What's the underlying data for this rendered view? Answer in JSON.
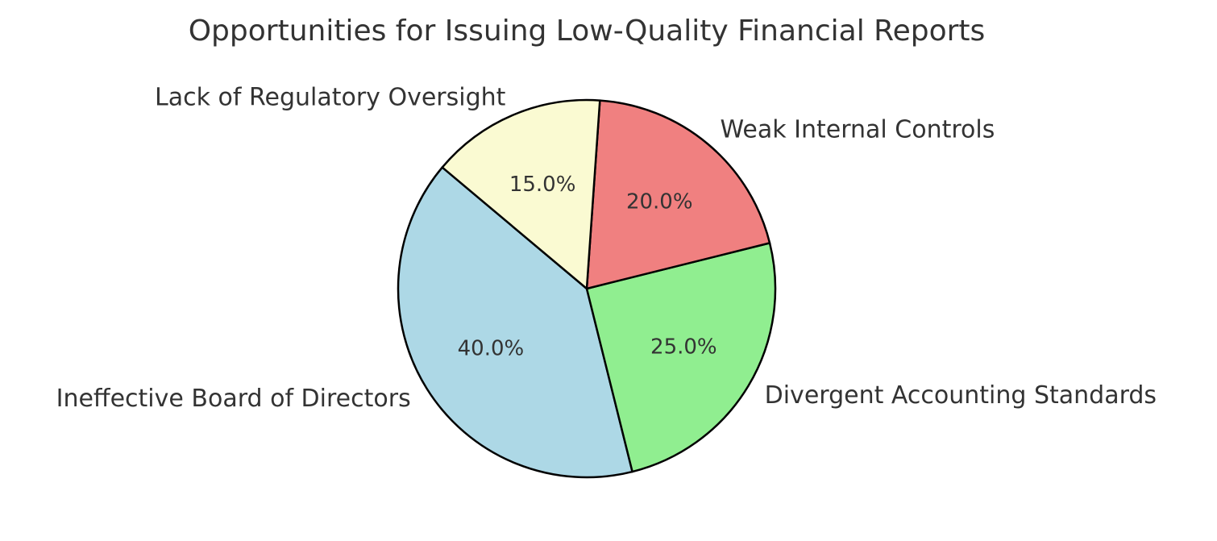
{
  "chart_data": {
    "type": "pie",
    "title": "Opportunities for Issuing Low-Quality Financial Reports",
    "categories": [
      "Ineffective Board of Directors",
      "Divergent Accounting Standards",
      "Weak Internal Controls",
      "Lack of Regulatory Oversight"
    ],
    "values": [
      40.0,
      25.0,
      20.0,
      15.0
    ],
    "percent_labels": [
      "40.0%",
      "25.0%",
      "20.0%",
      "15.0%"
    ],
    "colors": [
      "#add8e6",
      "#90ee90",
      "#f08080",
      "#fafad2"
    ],
    "edge_color": "#000000",
    "start_angle_deg": 140,
    "direction": "counterclockwise"
  }
}
